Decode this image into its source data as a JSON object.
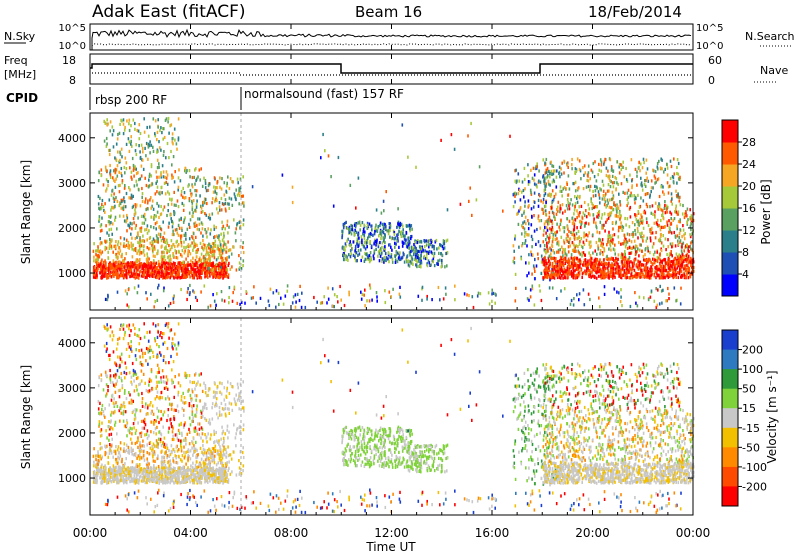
{
  "header": {
    "station": "Adak East (fitACF)",
    "beam": "Beam 16",
    "date": "18/Feb/2014"
  },
  "strips": {
    "nsky_label": "N.Sky",
    "nsky_ticks": [
      "10^5",
      "10^0"
    ],
    "nsearch_label": "N.Search",
    "nsearch_ticks": [
      "10^5",
      "10^0"
    ],
    "freq_label_line1": "Freq",
    "freq_label_line2": "[MHz]",
    "freq_ticks": [
      "18",
      "8"
    ],
    "nave_label": "Nave",
    "nave_ticks": [
      "60",
      "0"
    ],
    "cpid_label": "CPID",
    "cpid_segments": [
      {
        "label": "rbsp 200 RF",
        "start_hour": 0
      },
      {
        "label": "normalsound (fast) 157 RF",
        "start_hour": 6
      }
    ]
  },
  "chart_data": [
    {
      "type": "heatmap",
      "title": "",
      "xlabel": "Time UT",
      "ylabel": "Slant Range [km]",
      "x_ticks": [
        "00:00",
        "04:00",
        "08:00",
        "12:00",
        "16:00",
        "20:00",
        "00:00"
      ],
      "xlim_hours": [
        0,
        24
      ],
      "y_ticks": [
        1000,
        2000,
        3000,
        4000
      ],
      "ylim": [
        180,
        4550
      ],
      "colorbar": {
        "label": "Power [dB]",
        "ticks": [
          4,
          8,
          12,
          16,
          20,
          24,
          28
        ],
        "range": [
          0,
          32
        ],
        "colors": [
          "#0000ff",
          "#1e4fb4",
          "#2a7f8a",
          "#5aa060",
          "#a6c93a",
          "#f5a623",
          "#ff5a00",
          "#ff0000"
        ]
      }
    },
    {
      "type": "heatmap",
      "title": "",
      "xlabel": "Time UT",
      "ylabel": "Slant Range [km]",
      "x_ticks": [
        "00:00",
        "04:00",
        "08:00",
        "12:00",
        "16:00",
        "20:00",
        "00:00"
      ],
      "xlim_hours": [
        0,
        24
      ],
      "y_ticks": [
        1000,
        2000,
        3000,
        4000
      ],
      "ylim": [
        180,
        4550
      ],
      "colorbar": {
        "label": "Velocity [m s⁻¹]",
        "ticks": [
          200,
          100,
          50,
          15,
          -15,
          -50,
          -100,
          -200
        ],
        "colors": [
          "#1a3fcf",
          "#2d7ac0",
          "#2e9a3a",
          "#7fd23a",
          "#c8c8c8",
          "#f3c000",
          "#ff8a00",
          "#ff4a00",
          "#ff0000"
        ]
      }
    }
  ]
}
